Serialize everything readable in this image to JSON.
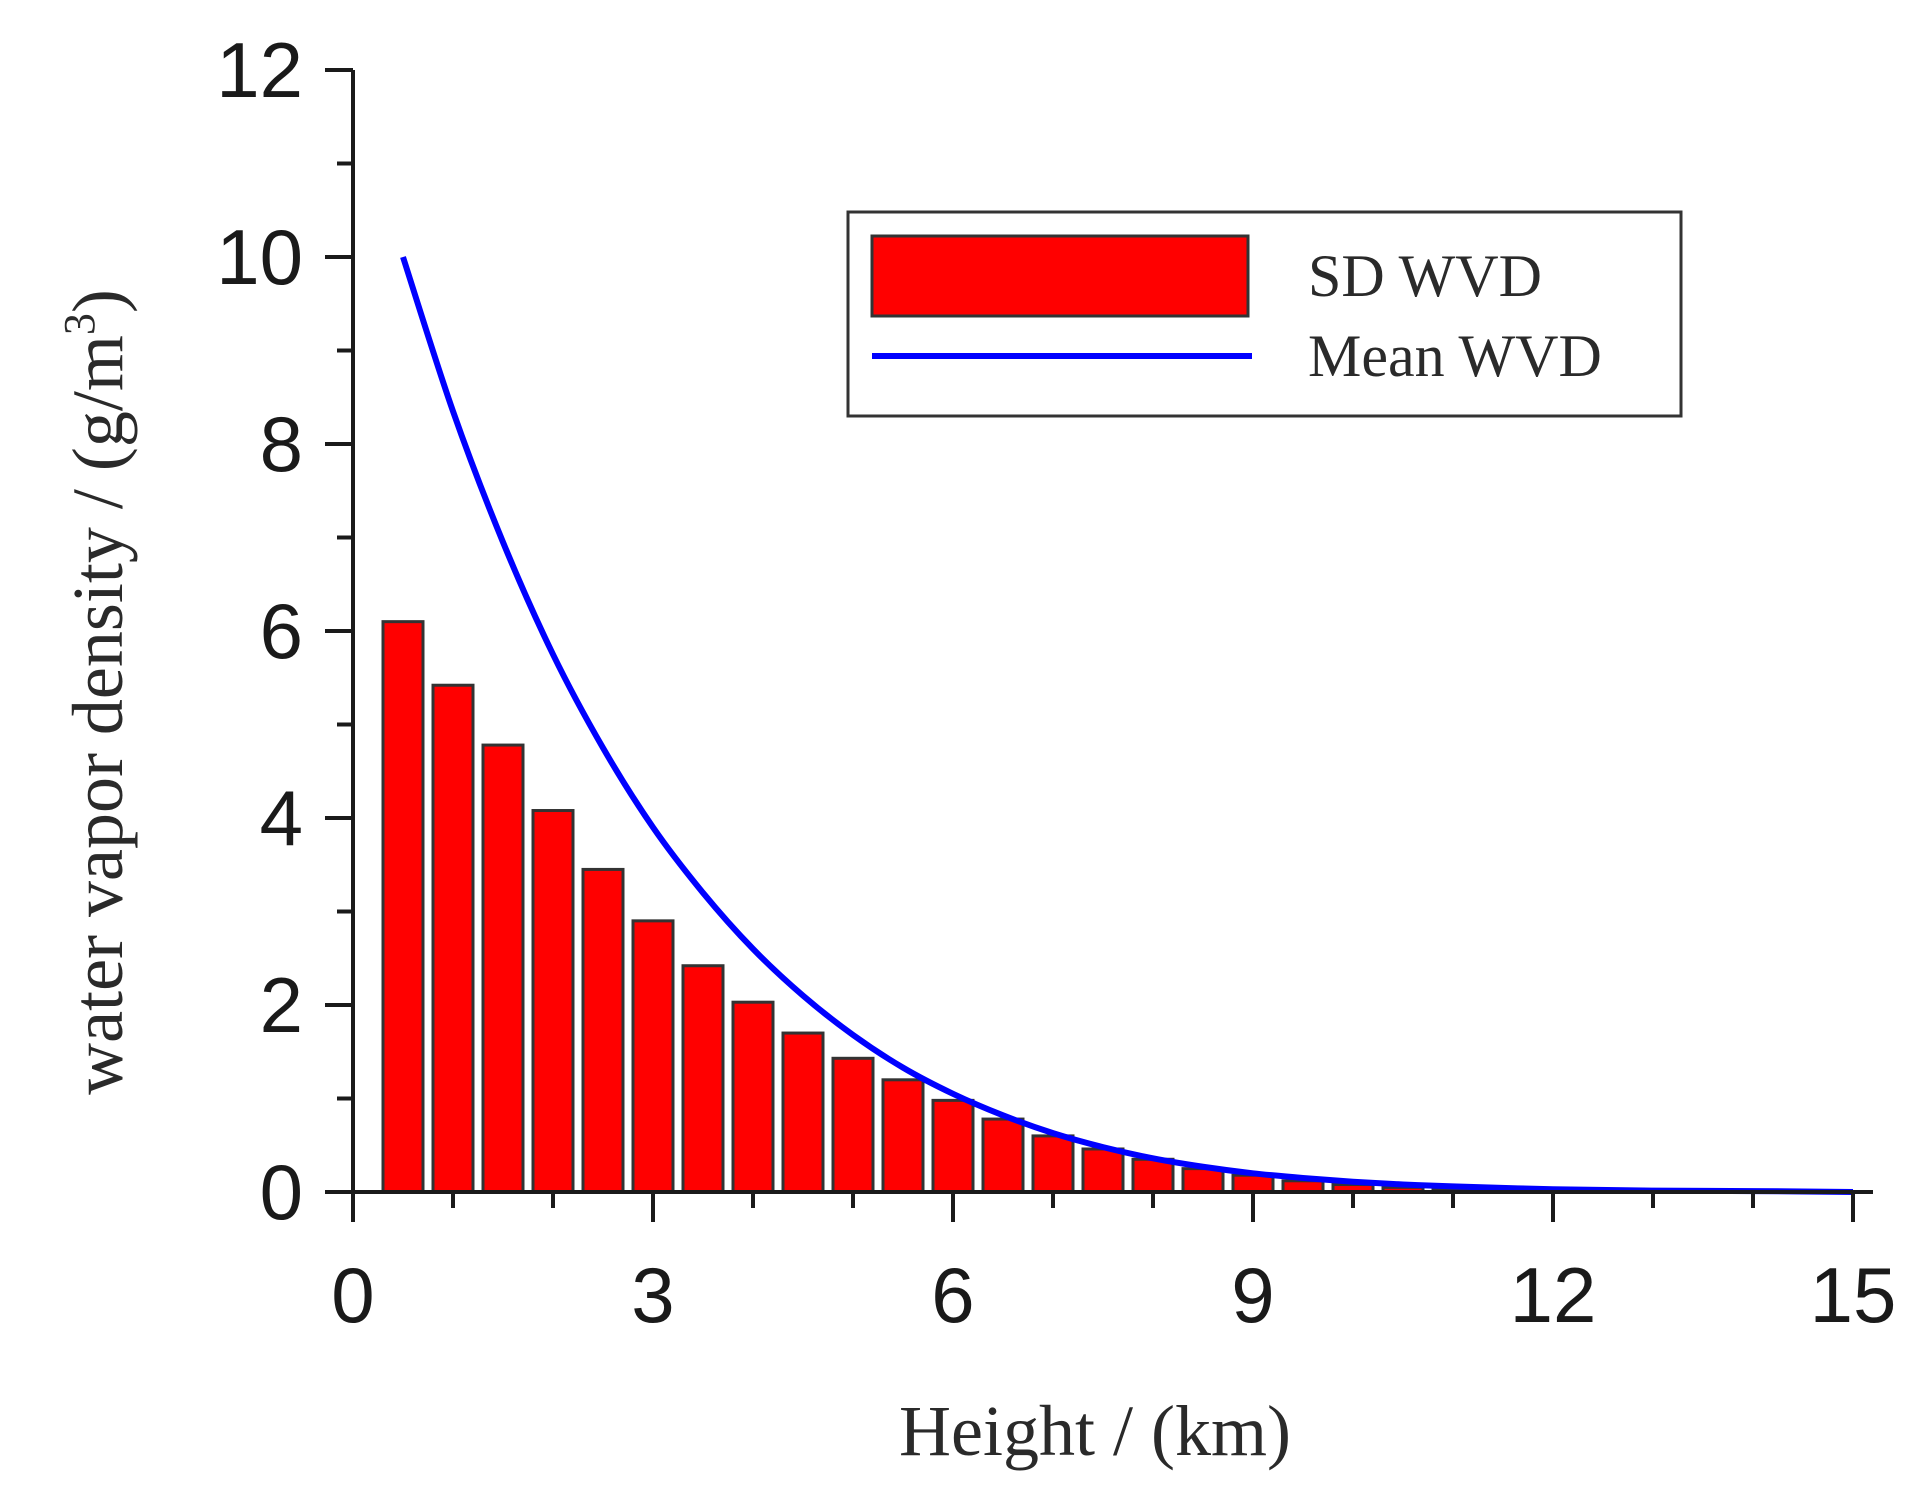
{
  "chart_data": {
    "type": "bar",
    "title": "",
    "xlabel": "Height / (km)",
    "ylabel_main": "water vapor density / (g/m",
    "ylabel_sup": "3",
    "ylabel_close": ")",
    "xlim": [
      0,
      15
    ],
    "ylim": [
      0,
      12
    ],
    "xticks": [
      0,
      3,
      6,
      9,
      12,
      15
    ],
    "xtick_labels": [
      "0",
      "3",
      "6",
      "9",
      "12",
      "15"
    ],
    "yticks": [
      0,
      2,
      4,
      6,
      8,
      10,
      12
    ],
    "ytick_labels": [
      "0",
      "2",
      "4",
      "6",
      "8",
      "10",
      "12"
    ],
    "grid": false,
    "legend_position": "top-right",
    "bar_width_km": 0.4,
    "series": [
      {
        "name": "SD WVD",
        "kind": "bar",
        "color": "#ff0000",
        "edge_color": "#333333",
        "x": [
          0.5,
          1.0,
          1.5,
          2.0,
          2.5,
          3.0,
          3.5,
          4.0,
          4.5,
          5.0,
          5.5,
          6.0,
          6.5,
          7.0,
          7.5,
          8.0,
          8.5,
          9.0,
          9.5,
          10.0,
          10.5,
          11.0,
          11.5,
          12.0,
          12.5,
          13.0,
          13.5,
          14.0,
          14.5,
          15.0
        ],
        "values": [
          6.1,
          5.42,
          4.78,
          4.08,
          3.45,
          2.9,
          2.42,
          2.03,
          1.7,
          1.43,
          1.2,
          0.98,
          0.78,
          0.6,
          0.46,
          0.35,
          0.25,
          0.18,
          0.12,
          0.08,
          0.05,
          0.03,
          0.02,
          0.01,
          0.01,
          0.0,
          0.0,
          0.0,
          0.0,
          0.0
        ]
      },
      {
        "name": "Mean WVD",
        "kind": "line",
        "color": "#0000ff",
        "x": [
          0.5,
          1.0,
          1.5,
          2.0,
          2.5,
          3.0,
          3.5,
          4.0,
          4.5,
          5.0,
          5.5,
          6.0,
          6.5,
          7.0,
          7.5,
          8.0,
          8.5,
          9.0,
          9.5,
          10.0,
          10.5,
          11.0,
          12.0,
          13.0,
          14.0,
          15.0
        ],
        "values": [
          10.0,
          8.35,
          6.95,
          5.75,
          4.75,
          3.9,
          3.2,
          2.6,
          2.1,
          1.68,
          1.33,
          1.05,
          0.82,
          0.63,
          0.48,
          0.36,
          0.27,
          0.2,
          0.15,
          0.11,
          0.08,
          0.06,
          0.03,
          0.015,
          0.01,
          0.0
        ]
      }
    ]
  }
}
